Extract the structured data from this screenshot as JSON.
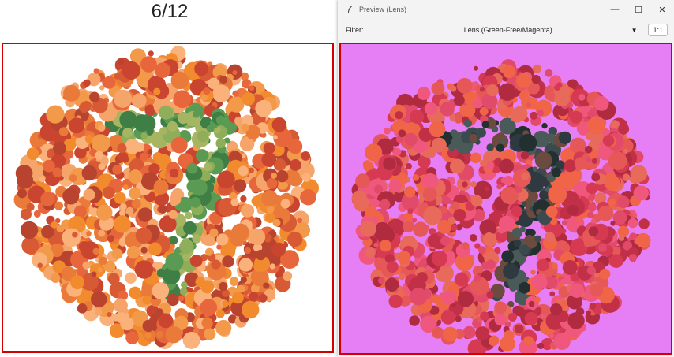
{
  "caption": "6/12",
  "window": {
    "title": "Preview (Lens)",
    "filter_label": "Filter:",
    "filter_value": "Lens (Green-Free/Magenta)",
    "zoom_label": "1:1"
  },
  "colors": {
    "highlight_border": "#d40000",
    "magenta_bg": "#e67ff5"
  }
}
